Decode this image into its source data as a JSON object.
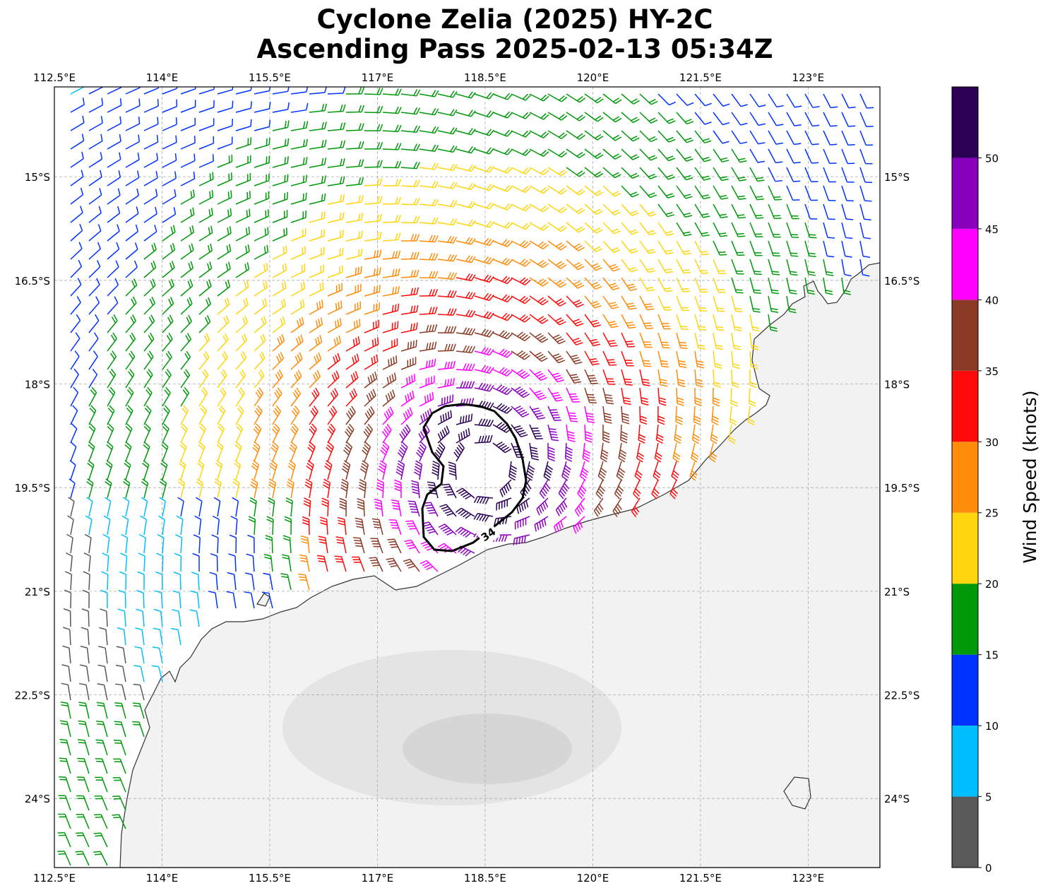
{
  "title": {
    "line1": "Cyclone Zelia (2025) HY-2C",
    "line2": "Ascending Pass 2025-02-13 05:34Z"
  },
  "map": {
    "lon_range": [
      112.5,
      124.0
    ],
    "lat_range": [
      -25.0,
      -13.7
    ],
    "lon_ticks": [
      {
        "value": 112.5,
        "label": "112.5°E"
      },
      {
        "value": 114.0,
        "label": "114°E"
      },
      {
        "value": 115.5,
        "label": "115.5°E"
      },
      {
        "value": 117.0,
        "label": "117°E"
      },
      {
        "value": 118.5,
        "label": "118.5°E"
      },
      {
        "value": 120.0,
        "label": "120°E"
      },
      {
        "value": 121.5,
        "label": "121.5°E"
      },
      {
        "value": 123.0,
        "label": "123°E"
      }
    ],
    "lat_ticks": [
      {
        "value": -15.0,
        "label": "15°S"
      },
      {
        "value": -16.5,
        "label": "16.5°S"
      },
      {
        "value": -18.0,
        "label": "18°S"
      },
      {
        "value": -19.5,
        "label": "19.5°S"
      },
      {
        "value": -21.0,
        "label": "21°S"
      },
      {
        "value": -22.5,
        "label": "22.5°S"
      },
      {
        "value": -24.0,
        "label": "24°S"
      }
    ],
    "gridlines": true,
    "storm_center": {
      "lon": 118.5,
      "lat": -19.2
    },
    "contour": {
      "value": 34,
      "label": "34",
      "color": "#000000"
    },
    "coastline_color": "#333333",
    "land_shading": "light-gray-satellite-ir"
  },
  "colorbar": {
    "label": "Wind Speed (knots)",
    "range": [
      0,
      55
    ],
    "ticks": [
      0,
      5,
      10,
      15,
      20,
      25,
      30,
      35,
      40,
      45,
      50
    ],
    "bands": [
      {
        "from": 0,
        "to": 5,
        "color": "#595959"
      },
      {
        "from": 5,
        "to": 10,
        "color": "#00bfff"
      },
      {
        "from": 10,
        "to": 15,
        "color": "#0033ff"
      },
      {
        "from": 15,
        "to": 20,
        "color": "#00990a"
      },
      {
        "from": 20,
        "to": 25,
        "color": "#ffd50e"
      },
      {
        "from": 25,
        "to": 30,
        "color": "#ff8c0a"
      },
      {
        "from": 30,
        "to": 35,
        "color": "#ff0a0a"
      },
      {
        "from": 35,
        "to": 40,
        "color": "#8b3a26"
      },
      {
        "from": 40,
        "to": 45,
        "color": "#ff00ff"
      },
      {
        "from": 45,
        "to": 50,
        "color": "#8800bb"
      },
      {
        "from": 50,
        "to": 55,
        "color": "#2b0055"
      }
    ]
  }
}
